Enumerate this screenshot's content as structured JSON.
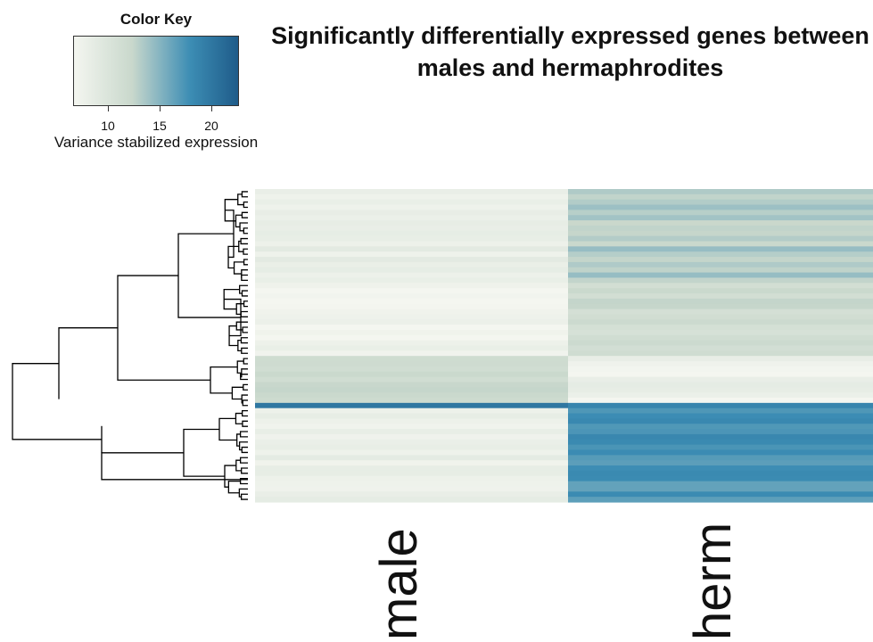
{
  "chart_data": {
    "type": "heatmap",
    "title": "Significantly differentially expressed genes between males and hermaphrodites",
    "columns": [
      "male",
      "herm"
    ],
    "row_dendrogram": true,
    "color_key": {
      "title": "Color Key",
      "xlabel": "Variance stabilized expression",
      "range": [
        7,
        23
      ],
      "ticks": [
        "10",
        "15",
        "20"
      ],
      "colors": [
        "#f4f6f0",
        "#c9d8cc",
        "#3c8db4",
        "#1e5a88"
      ]
    },
    "blocks": [
      {
        "rows": 18,
        "male": 8.4,
        "herm": 13.2
      },
      {
        "rows": 14,
        "male": 7.6,
        "herm": 11.6
      },
      {
        "rows": 9,
        "male": 11.8,
        "herm": 7.8
      },
      {
        "rows": 1,
        "male": 20.0,
        "herm": 18.5
      },
      {
        "rows": 18,
        "male": 8.3,
        "herm": 17.2
      }
    ]
  }
}
